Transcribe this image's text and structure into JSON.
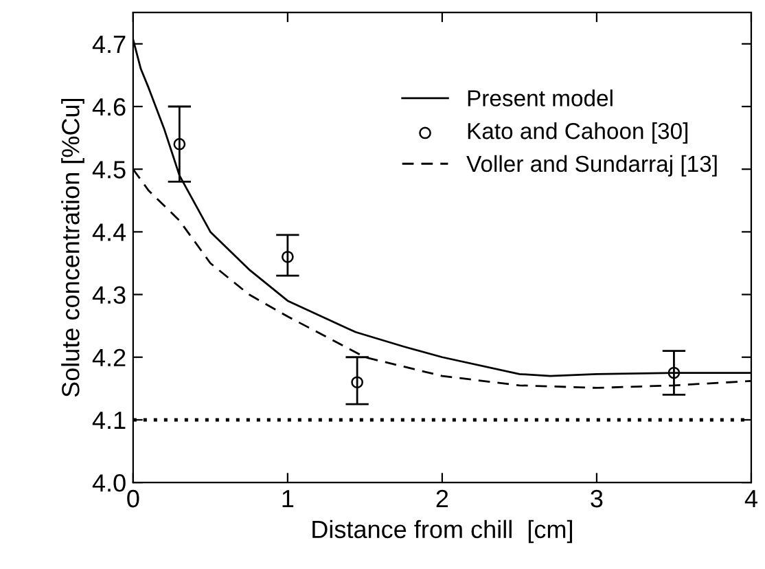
{
  "chart_data": {
    "type": "line",
    "xlabel": "Distance from chill  [cm]",
    "ylabel": "Solute concentration [%Cu]",
    "xlim": [
      0,
      4
    ],
    "ylim": [
      4.0,
      4.75
    ],
    "xticks": [
      0,
      1,
      2,
      3,
      4
    ],
    "yticks": [
      {
        "value": 4.0,
        "label": "4.0"
      },
      4.1,
      4.2,
      4.3,
      4.4,
      4.5,
      4.6,
      4.7
    ],
    "legend": "top right",
    "grid": false,
    "series": [
      {
        "name": "Present model",
        "line_style": "solid",
        "color": "#000000",
        "x": [
          0,
          0.05,
          0.1,
          0.2,
          0.3,
          0.5,
          0.75,
          1,
          1.44,
          1.75,
          2,
          2.5,
          2.7,
          3,
          3.5,
          4
        ],
        "values": [
          4.707,
          4.66,
          4.63,
          4.565,
          4.49,
          4.4,
          4.34,
          4.29,
          4.24,
          4.217,
          4.2,
          4.173,
          4.17,
          4.173,
          4.175,
          4.175
        ]
      },
      {
        "name": "Kato and Cahoon [30]",
        "type": "scatter",
        "marker": "circle",
        "color": "#000000",
        "x": [
          0.3,
          1.0,
          1.45,
          3.5
        ],
        "values": [
          4.54,
          4.36,
          4.16,
          4.175
        ],
        "errors": [
          [
            4.48,
            4.6
          ],
          [
            4.33,
            4.395
          ],
          [
            4.125,
            4.2
          ],
          [
            4.14,
            4.21
          ]
        ]
      },
      {
        "name": "Voller and Sundarraj [13]",
        "line_style": "dashed",
        "color": "#000000",
        "x": [
          0,
          0.1,
          0.3,
          0.5,
          0.75,
          1,
          1.5,
          2,
          2.5,
          3,
          3.5,
          4
        ],
        "values": [
          4.5,
          4.466,
          4.418,
          4.35,
          4.3,
          4.265,
          4.2,
          4.17,
          4.155,
          4.151,
          4.155,
          4.162
        ]
      }
    ],
    "ref_lines": [
      {
        "axis": "y",
        "value": 4.1,
        "color": "#000000",
        "line_style": "dotted"
      }
    ]
  }
}
